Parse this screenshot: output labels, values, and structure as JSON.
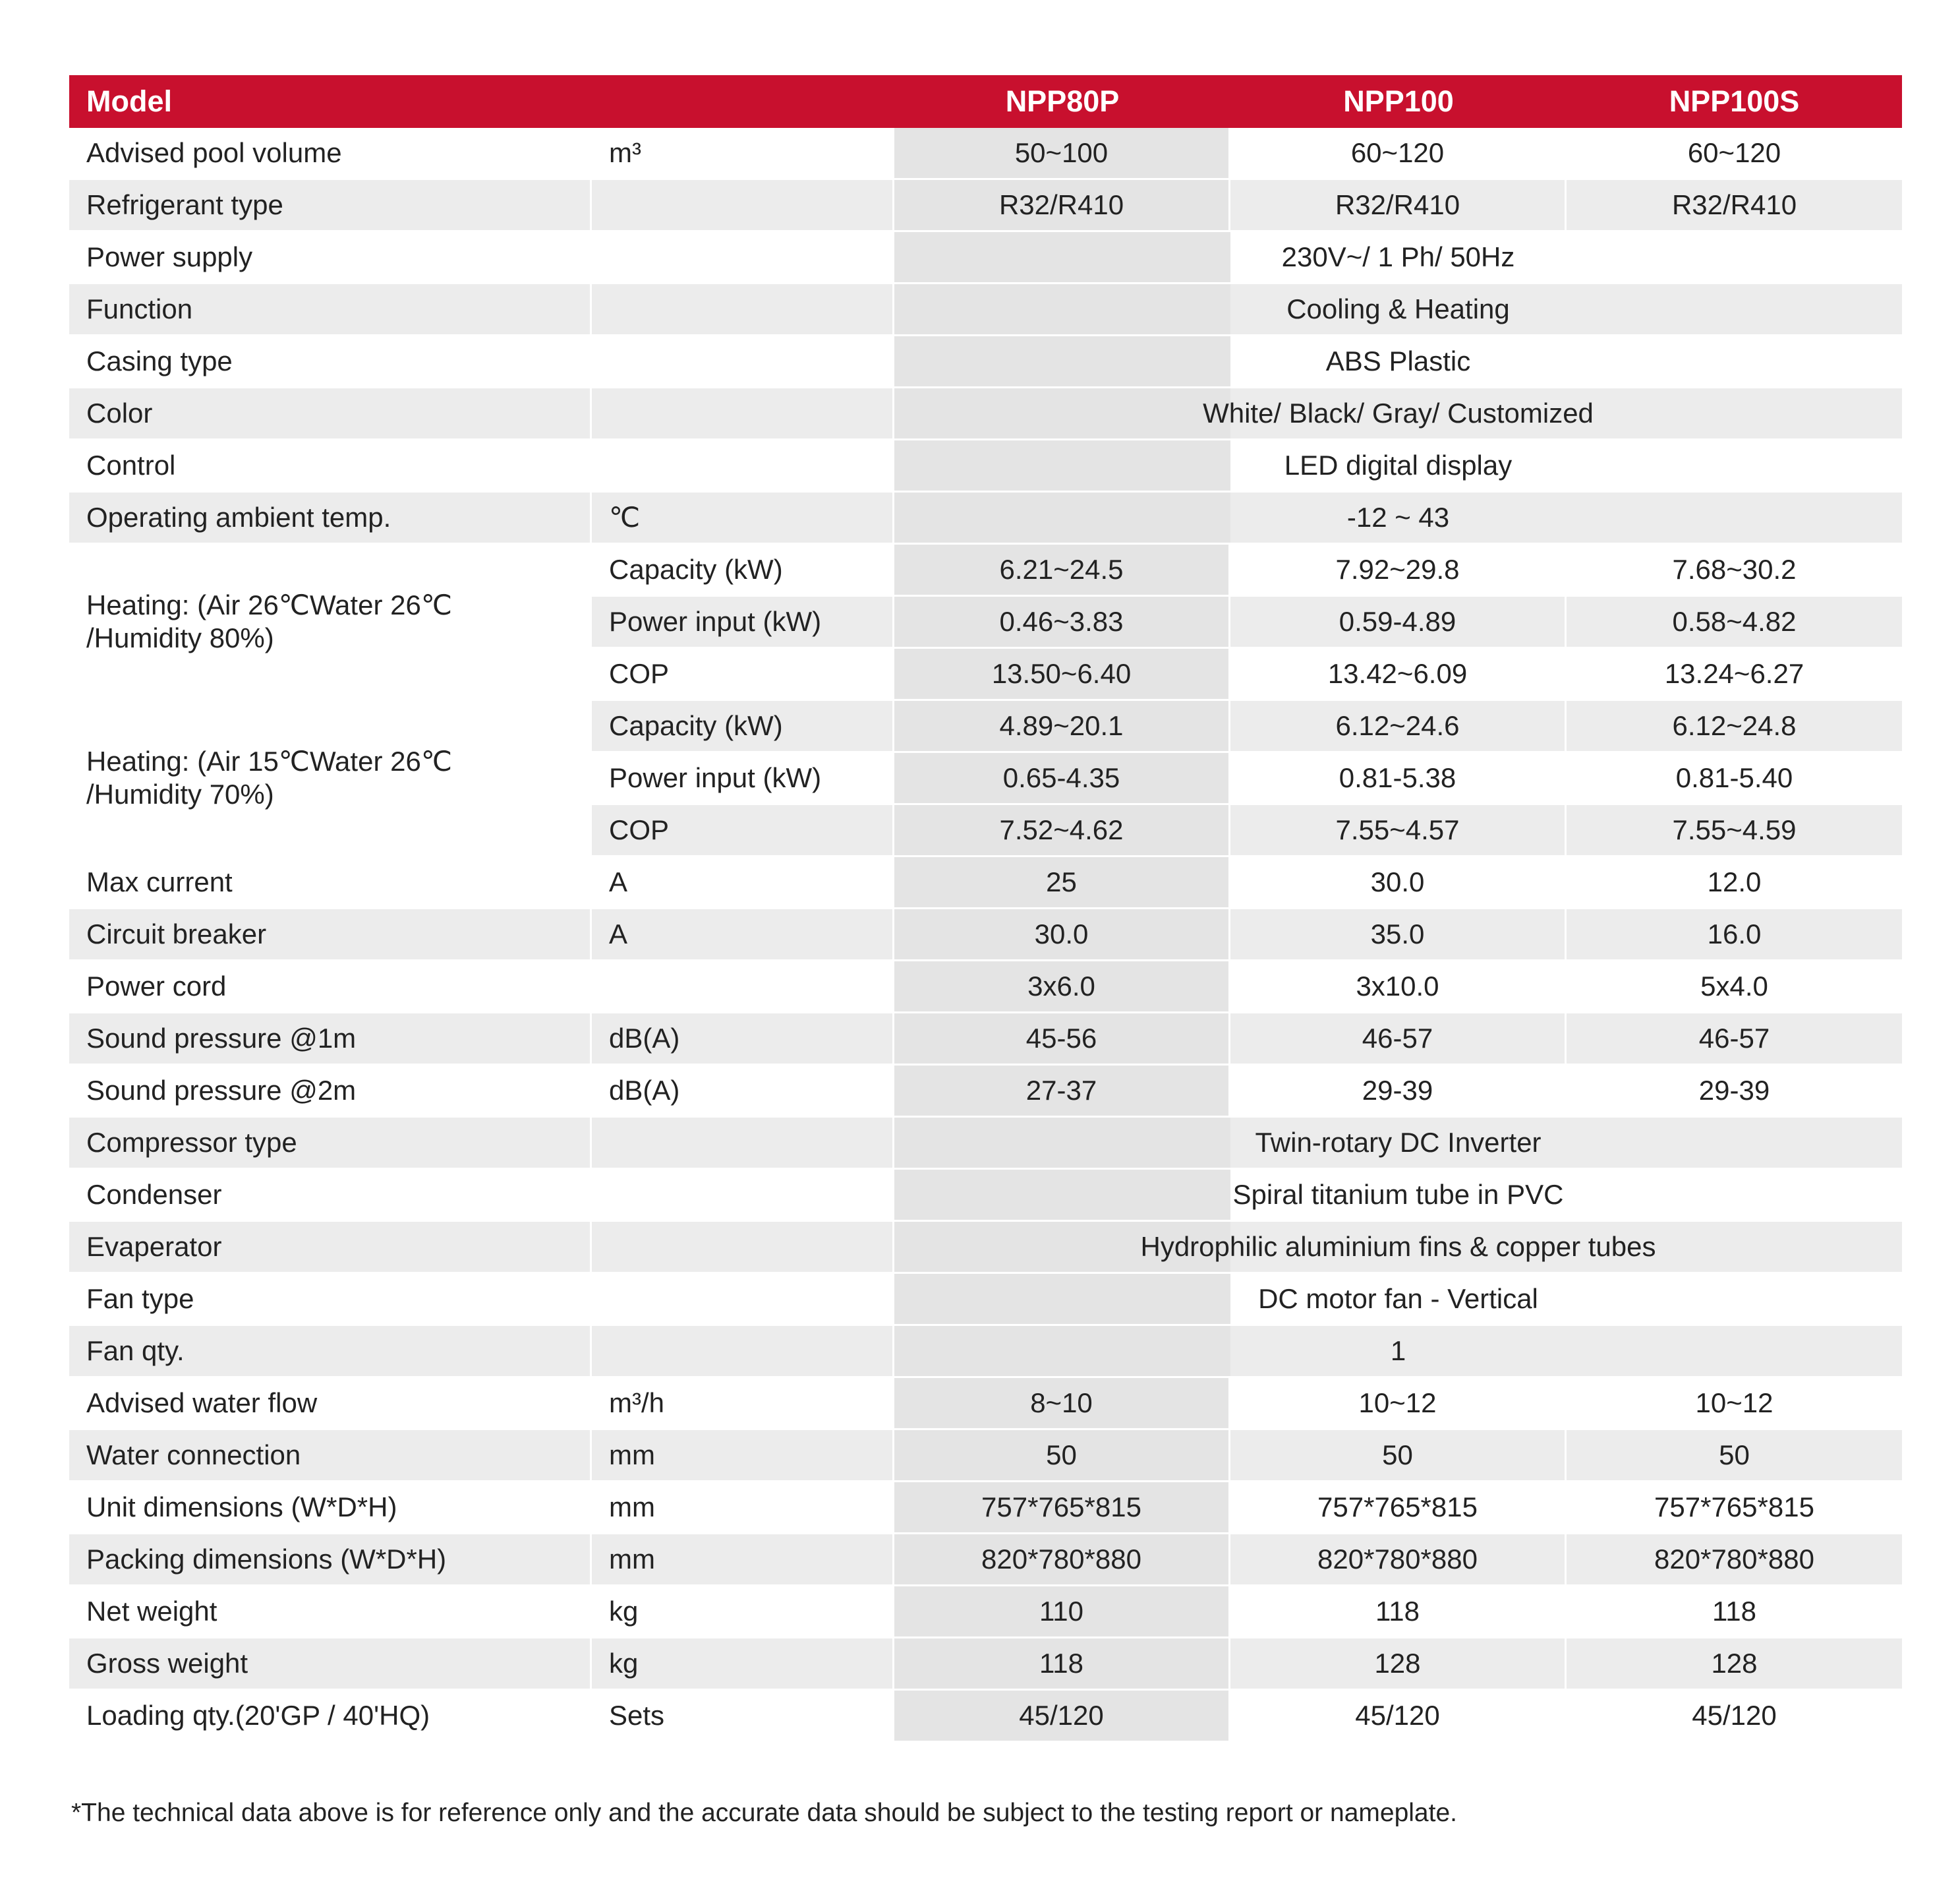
{
  "colors": {
    "header_bg": "#c8102e",
    "header_text": "#ffffff",
    "row_stripe": "#ececec",
    "first_value_column_band": "#e4e4e4",
    "text": "#222222"
  },
  "table": {
    "header": {
      "model_label": "Model",
      "columns": [
        "NPP80P",
        "NPP100",
        "NPP100S"
      ]
    },
    "rows": [
      {
        "type": "normal",
        "label": "Advised pool volume",
        "unit": "m³",
        "values": [
          "50~100",
          "60~120",
          "60~120"
        ]
      },
      {
        "type": "normal",
        "label": "Refrigerant type",
        "unit": "",
        "values": [
          "R32/R410",
          "R32/R410",
          "R32/R410"
        ]
      },
      {
        "type": "span",
        "label": "Power supply",
        "unit": "",
        "value": "230V~/ 1 Ph/ 50Hz"
      },
      {
        "type": "span",
        "label": "Function",
        "unit": "",
        "value": "Cooling & Heating"
      },
      {
        "type": "span",
        "label": "Casing type",
        "unit": "",
        "value": "ABS Plastic"
      },
      {
        "type": "span",
        "label": "Color",
        "unit": "",
        "value": "White/ Black/ Gray/ Customized"
      },
      {
        "type": "span",
        "label": "Control",
        "unit": "",
        "value": "LED digital display"
      },
      {
        "type": "span",
        "label": "Operating ambient temp.",
        "unit": "℃",
        "value": "-12 ~ 43"
      },
      {
        "type": "group",
        "label": "Heating: (Air 26℃Water 26℃ /Humidity 80%)",
        "subrows": [
          {
            "label": "Capacity (kW)",
            "values": [
              "6.21~24.5",
              "7.92~29.8",
              "7.68~30.2"
            ]
          },
          {
            "label": "Power input (kW)",
            "values": [
              "0.46~3.83",
              "0.59-4.89",
              "0.58~4.82"
            ]
          },
          {
            "label": "COP",
            "values": [
              "13.50~6.40",
              "13.42~6.09",
              "13.24~6.27"
            ]
          }
        ]
      },
      {
        "type": "group",
        "label": "Heating: (Air 15℃Water 26℃ /Humidity 70%)",
        "subrows": [
          {
            "label": "Capacity (kW)",
            "values": [
              "4.89~20.1",
              "6.12~24.6",
              "6.12~24.8"
            ]
          },
          {
            "label": "Power input (kW)",
            "values": [
              "0.65-4.35",
              "0.81-5.38",
              "0.81-5.40"
            ]
          },
          {
            "label": "COP",
            "values": [
              "7.52~4.62",
              "7.55~4.57",
              "7.55~4.59"
            ]
          }
        ]
      },
      {
        "type": "normal",
        "label": "Max current",
        "unit": "A",
        "values": [
          "25",
          "30.0",
          "12.0"
        ]
      },
      {
        "type": "normal",
        "label": "Circuit breaker",
        "unit": "A",
        "values": [
          "30.0",
          "35.0",
          "16.0"
        ]
      },
      {
        "type": "normal",
        "label": "Power cord",
        "unit": "",
        "values": [
          "3x6.0",
          "3x10.0",
          "5x4.0"
        ]
      },
      {
        "type": "normal",
        "label": "Sound pressure @1m",
        "unit": "dB(A)",
        "values": [
          "45-56",
          "46-57",
          "46-57"
        ]
      },
      {
        "type": "normal",
        "label": "Sound pressure @2m",
        "unit": "dB(A)",
        "values": [
          "27-37",
          "29-39",
          "29-39"
        ]
      },
      {
        "type": "span",
        "label": "Compressor type",
        "unit": "",
        "value": "Twin-rotary DC Inverter"
      },
      {
        "type": "span",
        "label": "Condenser",
        "unit": "",
        "value": "Spiral titanium tube in PVC"
      },
      {
        "type": "span",
        "label": "Evaperator",
        "unit": "",
        "value": "Hydrophilic aluminium fins & copper tubes"
      },
      {
        "type": "span",
        "label": "Fan type",
        "unit": "",
        "value": "DC motor fan - Vertical"
      },
      {
        "type": "span",
        "label": "Fan qty.",
        "unit": "",
        "value": "1"
      },
      {
        "type": "normal",
        "label": "Advised water flow",
        "unit": "m³/h",
        "values": [
          "8~10",
          "10~12",
          "10~12"
        ]
      },
      {
        "type": "normal",
        "label": "Water connection",
        "unit": "mm",
        "values": [
          "50",
          "50",
          "50"
        ]
      },
      {
        "type": "normal",
        "label": "Unit dimensions (W*D*H)",
        "unit": "mm",
        "values": [
          "757*765*815",
          "757*765*815",
          "757*765*815"
        ]
      },
      {
        "type": "normal",
        "label": "Packing dimensions (W*D*H)",
        "unit": "mm",
        "values": [
          "820*780*880",
          "820*780*880",
          "820*780*880"
        ]
      },
      {
        "type": "normal",
        "label": "Net weight",
        "unit": "kg",
        "values": [
          "110",
          "118",
          "118"
        ]
      },
      {
        "type": "normal",
        "label": "Gross weight",
        "unit": "kg",
        "values": [
          "118",
          "128",
          "128"
        ]
      },
      {
        "type": "normal",
        "label": "Loading qty.(20'GP / 40'HQ)",
        "unit": "Sets",
        "values": [
          "45/120",
          "45/120",
          "45/120"
        ]
      }
    ]
  },
  "footnote": "*The technical data above is for reference only and the accurate data should be subject to the testing report or nameplate."
}
